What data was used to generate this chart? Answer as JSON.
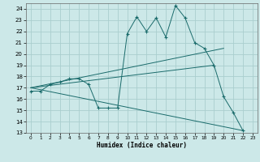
{
  "bg_color": "#cce8e8",
  "grid_color": "#aacece",
  "line_color": "#1a6b6b",
  "xlabel": "Humidex (Indice chaleur)",
  "xlim": [
    -0.5,
    23.5
  ],
  "ylim": [
    13,
    24.5
  ],
  "yticks": [
    13,
    14,
    15,
    16,
    17,
    18,
    19,
    20,
    21,
    22,
    23,
    24
  ],
  "xticks": [
    0,
    1,
    2,
    3,
    4,
    5,
    6,
    7,
    8,
    9,
    10,
    11,
    12,
    13,
    14,
    15,
    16,
    17,
    18,
    19,
    20,
    21,
    22,
    23
  ],
  "main_series": {
    "x": [
      0,
      1,
      2,
      3,
      4,
      5,
      6,
      7,
      8,
      9,
      10,
      11,
      12,
      13,
      14,
      15,
      16,
      17,
      18,
      19,
      20,
      21,
      22
    ],
    "y": [
      16.7,
      16.7,
      17.3,
      17.5,
      17.8,
      17.8,
      17.3,
      15.2,
      15.2,
      15.2,
      21.8,
      23.3,
      22.0,
      23.2,
      21.5,
      24.3,
      23.2,
      21.0,
      20.5,
      19.0,
      16.2,
      14.8,
      13.2
    ]
  },
  "trend_lines": [
    {
      "x": [
        0,
        20
      ],
      "y": [
        17.0,
        20.5
      ]
    },
    {
      "x": [
        0,
        19
      ],
      "y": [
        17.0,
        19.0
      ]
    },
    {
      "x": [
        0,
        22
      ],
      "y": [
        17.0,
        13.2
      ]
    }
  ]
}
